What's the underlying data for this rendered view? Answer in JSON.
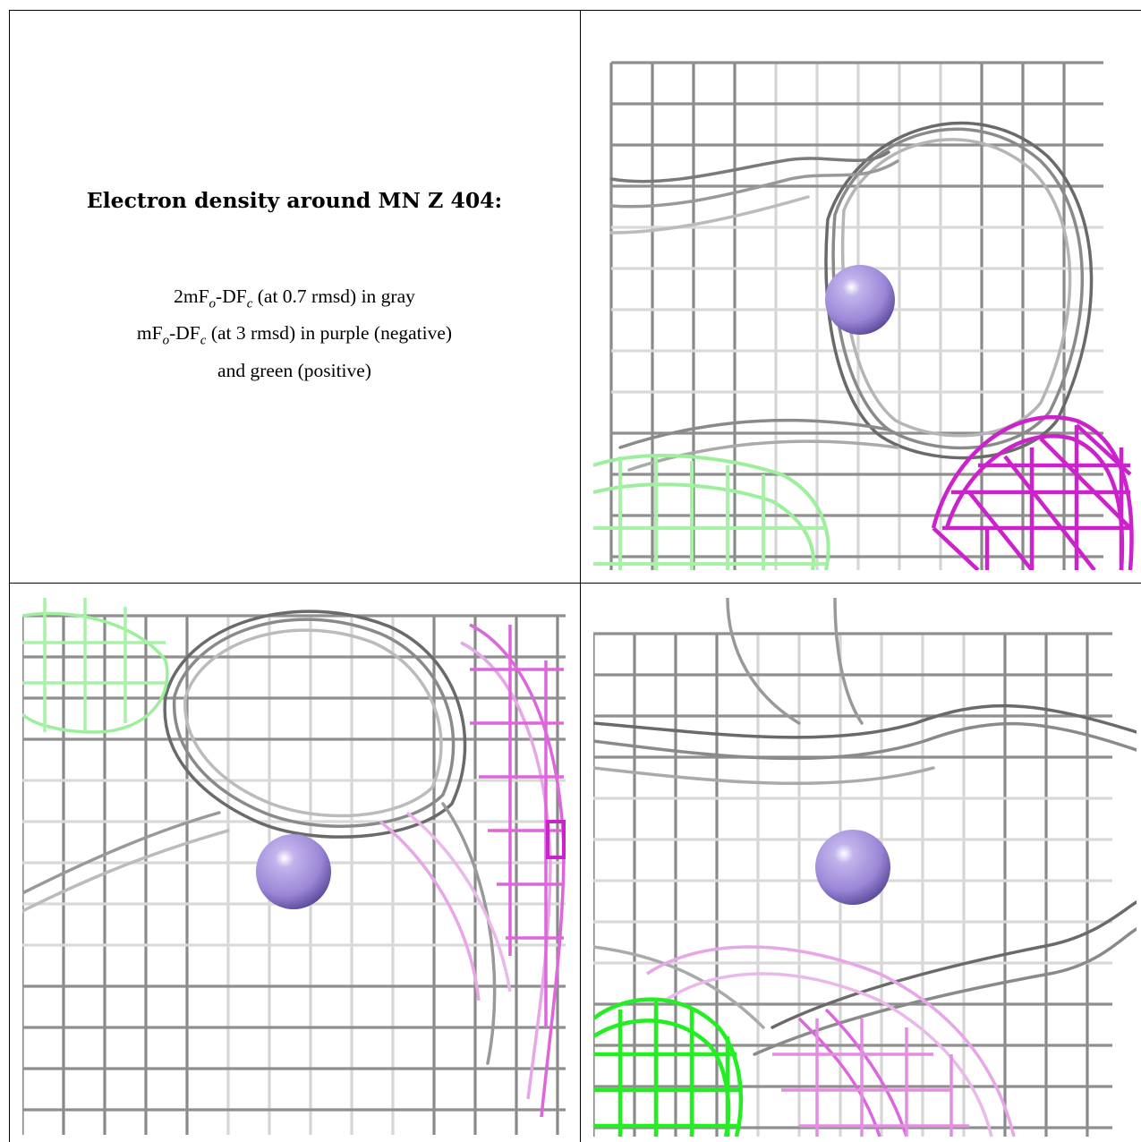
{
  "legend": {
    "title": "Electron density around MN Z 404:",
    "line1_pre": "2mF",
    "line1_sub1": "o",
    "line1_mid": "-DF",
    "line1_sub2": "c",
    "line1_post": " (at 0.7 rmsd) in gray",
    "line2_pre": "mF",
    "line2_sub1": "o",
    "line2_mid": "-DF",
    "line2_sub2": "c",
    "line2_post": " (at 3 rmsd) in purple (negative)",
    "line3": "and green (positive)"
  },
  "colors": {
    "gray_mesh": "#8a8a8a",
    "dark_mesh": "#505050",
    "purple_mesh": "#cc22cc",
    "light_purple_mesh": "#e7a6e7",
    "green_mesh": "#22ee22",
    "light_green_mesh": "#9cf09c",
    "atom": "#9b86d6"
  },
  "panels": [
    {
      "id": "top-right",
      "atom": "MN Z 404",
      "green_level": "light",
      "purple_level": "strong"
    },
    {
      "id": "bottom-left",
      "atom": "MN Z 404",
      "green_level": "light",
      "purple_level": "light"
    },
    {
      "id": "bottom-right",
      "atom": "MN Z 404",
      "green_level": "strong",
      "purple_level": "light"
    }
  ]
}
